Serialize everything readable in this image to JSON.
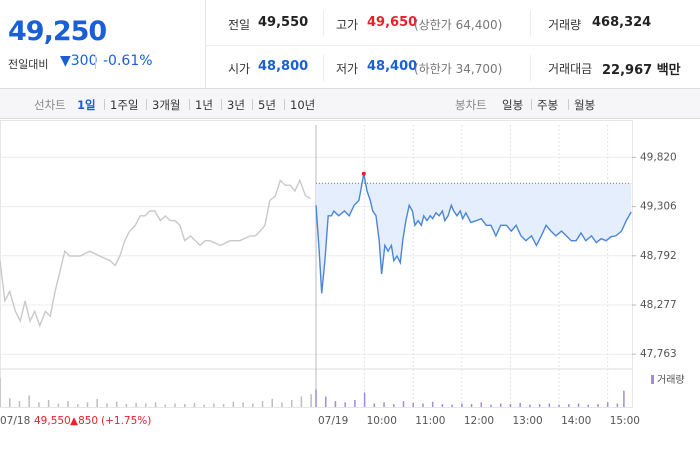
{
  "header": {
    "price": "49,250",
    "change_label": "전일대비",
    "change": "▼300",
    "change_percent": "-0.61%",
    "stats": [
      {
        "label": "전일",
        "value": "49,550"
      },
      {
        "label": "고가",
        "value": "49,650",
        "note": "(상한가 64,400)"
      },
      {
        "label": "거래량",
        "value": "468,324"
      },
      {
        "label": "시가",
        "value": "48,800"
      },
      {
        "label": "저가",
        "value": "48,400",
        "note": "(하한가 34,700)"
      },
      {
        "label": "거래대금",
        "value": "22,967 백만"
      }
    ]
  },
  "tabs": {
    "line_label": "선차트",
    "line_periods": [
      "1일",
      "1주일",
      "3개월",
      "1년",
      "3년",
      "5년",
      "10년"
    ],
    "candle_label": "봉차트",
    "candle_periods": [
      "일봉",
      "주봉",
      "월봉"
    ]
  },
  "footer": {
    "close": "49,550",
    "change": "▲850",
    "percent": "(+1.75%)"
  },
  "chart_data": {
    "type": "line",
    "xlim": [
      0,
      780
    ],
    "xticks": [
      {
        "value": 0,
        "label": "07/18"
      },
      {
        "value": 390,
        "label": "07/19"
      },
      {
        "value": 450,
        "label": "10:00"
      },
      {
        "value": 510,
        "label": "11:00"
      },
      {
        "value": 570,
        "label": "12:00"
      },
      {
        "value": 630,
        "label": "13:00"
      },
      {
        "value": 690,
        "label": "14:00"
      },
      {
        "value": 750,
        "label": "15:00"
      }
    ],
    "ylim": [
      47650,
      49950
    ],
    "yticks": [
      {
        "value": 49820,
        "label": "49,820"
      },
      {
        "value": 49306,
        "label": "49,306"
      },
      {
        "value": 48792,
        "label": "48,792"
      },
      {
        "value": 48277,
        "label": "48,277"
      },
      {
        "value": 47763,
        "label": "47,763"
      }
    ],
    "grid": true,
    "reference_line": 49550,
    "series": [
      {
        "color": "#c9c9c9",
        "x": [
          0,
          6,
          12,
          19,
          25,
          31,
          37,
          43,
          49,
          56,
          62,
          68,
          74,
          80,
          86,
          99,
          111,
          123,
          136,
          142,
          148,
          154,
          160,
          167,
          173,
          179,
          185,
          191,
          198,
          204,
          210,
          216,
          222,
          228,
          235,
          241,
          247,
          253,
          259,
          272,
          284,
          296,
          309,
          315,
          321,
          327,
          333,
          340,
          346,
          352,
          358,
          364,
          370,
          377,
          383
        ],
        "values": [
          48740,
          48320,
          48420,
          48210,
          48110,
          48320,
          48110,
          48210,
          48060,
          48210,
          48160,
          48420,
          48630,
          48840,
          48790,
          48790,
          48840,
          48790,
          48740,
          48690,
          48790,
          48950,
          49050,
          49110,
          49210,
          49210,
          49260,
          49260,
          49160,
          49210,
          49160,
          49160,
          49110,
          48950,
          49000,
          48950,
          48900,
          48950,
          48950,
          48900,
          48950,
          48950,
          49000,
          49000,
          49050,
          49110,
          49370,
          49420,
          49580,
          49530,
          49530,
          49470,
          49580,
          49420,
          49390
        ]
      },
      {
        "color": "#4a86d8",
        "fill": "#e4eefc",
        "x": [
          390,
          394,
          397,
          401,
          405,
          409,
          412,
          418,
          425,
          431,
          437,
          443,
          449,
          453,
          457,
          460,
          464,
          468,
          471,
          475,
          479,
          483,
          486,
          490,
          494,
          497,
          501,
          505,
          509,
          512,
          516,
          520,
          523,
          527,
          531,
          534,
          538,
          542,
          546,
          549,
          553,
          557,
          560,
          564,
          568,
          571,
          575,
          581,
          588,
          594,
          600,
          606,
          612,
          618,
          625,
          631,
          637,
          643,
          649,
          656,
          662,
          668,
          674,
          680,
          686,
          693,
          699,
          705,
          711,
          717,
          723,
          730,
          736,
          742,
          748,
          754,
          760,
          767,
          773,
          779
        ],
        "values": [
          49320,
          48840,
          48400,
          48740,
          49210,
          49210,
          49260,
          49210,
          49260,
          49210,
          49320,
          49370,
          49650,
          49470,
          49370,
          49260,
          49210,
          48950,
          48600,
          48900,
          48840,
          48900,
          48740,
          48790,
          48720,
          48950,
          49160,
          49320,
          49260,
          49110,
          49160,
          49110,
          49210,
          49160,
          49210,
          49180,
          49240,
          49210,
          49260,
          49160,
          49210,
          49320,
          49260,
          49210,
          49260,
          49180,
          49240,
          49140,
          49160,
          49180,
          49110,
          49110,
          49000,
          49110,
          49110,
          49050,
          49110,
          49000,
          48950,
          49000,
          48900,
          49000,
          49110,
          49050,
          49000,
          49050,
          49000,
          48950,
          48950,
          49030,
          48950,
          49000,
          48930,
          48970,
          48950,
          48990,
          49000,
          49050,
          49160,
          49250
        ]
      }
    ],
    "volume": {
      "name": "거래량",
      "ylim": [
        0,
        60000
      ],
      "series": [
        {
          "color": "#bdbdbd",
          "x": [
            0,
            12,
            24,
            36,
            48,
            60,
            72,
            84,
            96,
            108,
            120,
            132,
            144,
            156,
            168,
            180,
            192,
            204,
            216,
            228,
            240,
            252,
            264,
            276,
            288,
            300,
            312,
            324,
            336,
            348,
            360,
            372,
            384
          ],
          "values": [
            50000,
            15000,
            10000,
            20000,
            8000,
            12000,
            6000,
            10000,
            5000,
            8000,
            14000,
            6000,
            9000,
            5000,
            7000,
            6000,
            8000,
            4000,
            6000,
            5000,
            7000,
            4000,
            6000,
            5000,
            9000,
            8000,
            6000,
            10000,
            14000,
            8000,
            12000,
            18000,
            22000
          ]
        },
        {
          "color": "#a48ad8",
          "x": [
            390,
            402,
            414,
            426,
            438,
            450,
            462,
            474,
            486,
            498,
            510,
            522,
            534,
            546,
            558,
            570,
            582,
            594,
            606,
            618,
            630,
            642,
            654,
            666,
            678,
            690,
            702,
            714,
            726,
            738,
            750,
            762,
            770
          ],
          "values": [
            30000,
            18000,
            10000,
            8000,
            12000,
            25000,
            6000,
            8000,
            5000,
            10000,
            7000,
            6000,
            9000,
            5000,
            4000,
            6000,
            5000,
            8000,
            4000,
            6000,
            5000,
            7000,
            4000,
            5000,
            6000,
            4000,
            5000,
            6000,
            4000,
            5000,
            8000,
            6000,
            28000
          ]
        }
      ]
    }
  }
}
